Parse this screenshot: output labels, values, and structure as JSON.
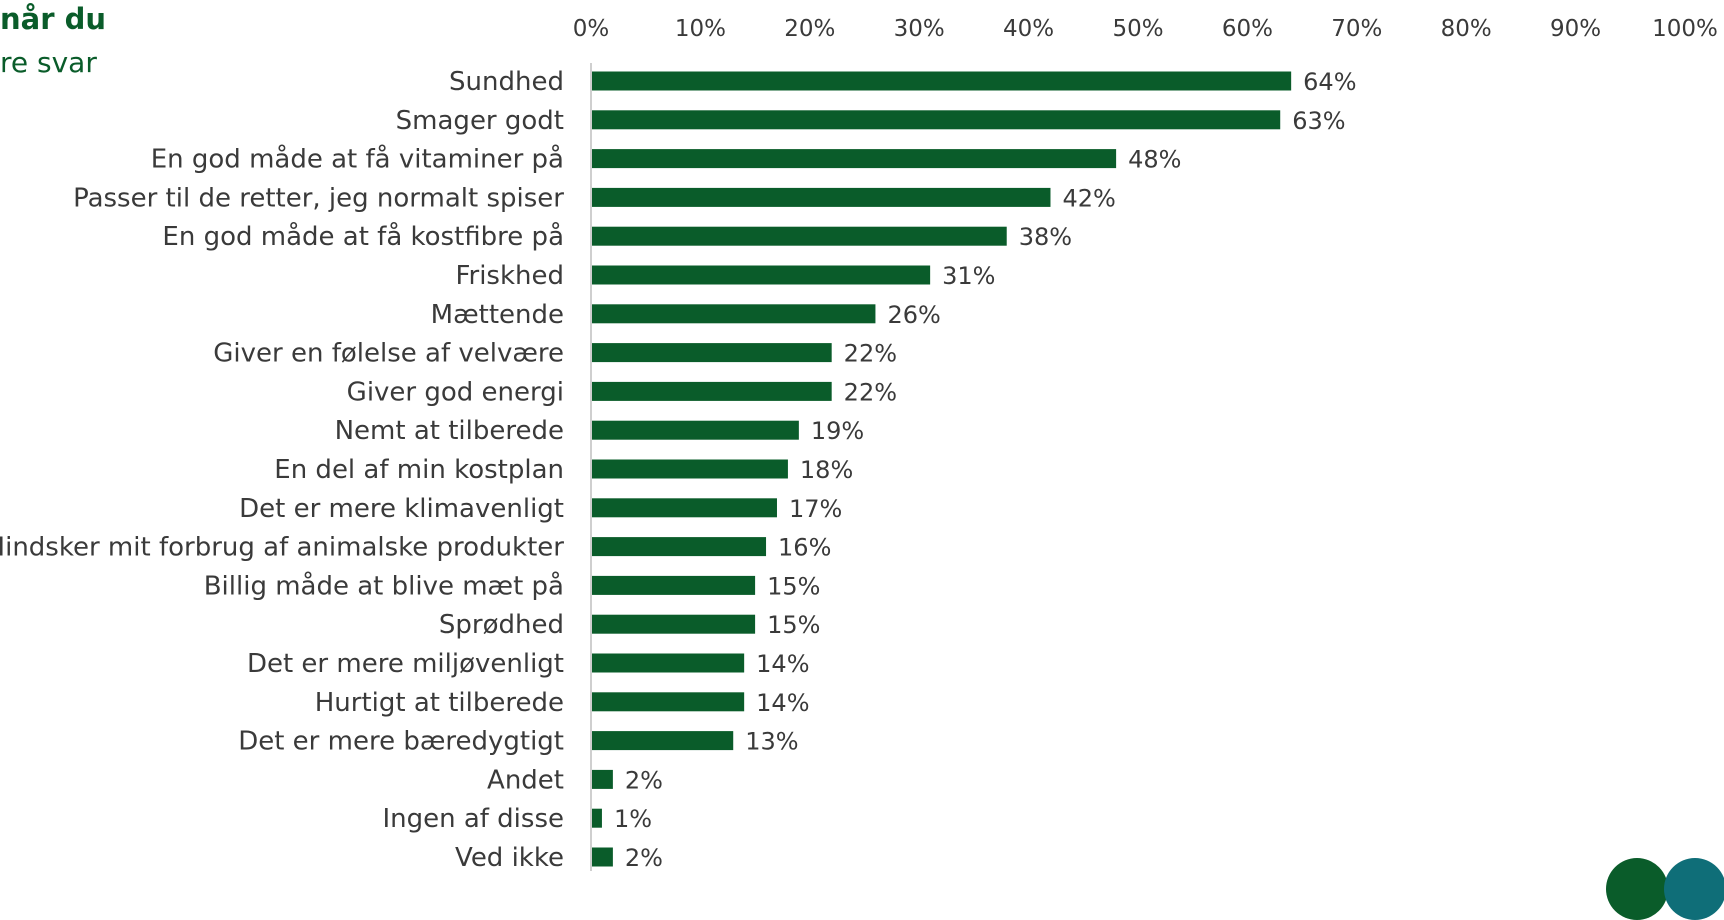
{
  "header": {
    "title": "når du",
    "subtitle": "re svar"
  },
  "colors": {
    "bar": "#0a5c2a",
    "text": "#3a3a3a",
    "axis": "#bfbfbf",
    "title": "#0a5c2a",
    "badge_one": "#0a5c2a",
    "badge_two": "#0f6e78"
  },
  "chart_data": {
    "type": "bar",
    "orientation": "horizontal",
    "categories": [
      "Sundhed",
      "Smager godt",
      "En god måde at få vitaminer på",
      "Passer til de retter, jeg normalt spiser",
      "En god måde at få kostfibre på",
      "Friskhed",
      "Mættende",
      "Giver en følelse af velvære",
      "Giver god energi",
      "Nemt at tilberede",
      "En del af min kostplan",
      "Det er mere klimavenligt",
      "Mindsker mit forbrug af animalske produkter",
      "Billig måde at blive mæt på",
      "Sprødhed",
      "Det er mere miljøvenligt",
      "Hurtigt at tilberede",
      "Det er mere bæredygtigt",
      "Andet",
      "Ingen af disse",
      "Ved ikke"
    ],
    "values": [
      64,
      63,
      48,
      42,
      38,
      31,
      26,
      22,
      22,
      19,
      18,
      17,
      16,
      15,
      15,
      14,
      14,
      13,
      2,
      1,
      2
    ],
    "data_labels": [
      "64%",
      "63%",
      "48%",
      "42%",
      "38%",
      "31%",
      "26%",
      "22%",
      "22%",
      "19%",
      "18%",
      "17%",
      "16%",
      "15%",
      "15%",
      "14%",
      "14%",
      "13%",
      "2%",
      "1%",
      "2%"
    ],
    "tick_labels": [
      "0%",
      "10%",
      "20%",
      "30%",
      "40%",
      "50%",
      "60%",
      "70%",
      "80%",
      "90%",
      "100%"
    ],
    "xlim": [
      0,
      100
    ],
    "axis_position": "top",
    "grid": false,
    "legend": "none"
  }
}
